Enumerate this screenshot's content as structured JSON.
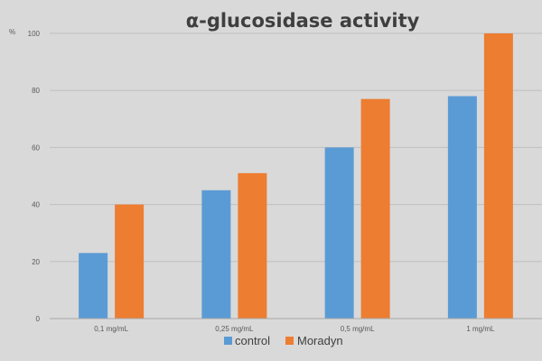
{
  "chart_data": {
    "type": "bar",
    "title": "α-glucosidase activity",
    "ylabel": "%",
    "xlabel": "",
    "categories": [
      "0,1 mg/mL",
      "0,25 mg/mL",
      "0,5 mg/mL",
      "1 mg/mL"
    ],
    "series": [
      {
        "name": "control",
        "values": [
          23,
          45,
          60,
          78
        ]
      },
      {
        "name": "Moradyn",
        "values": [
          40,
          51,
          77,
          100
        ]
      }
    ],
    "ylim": [
      0,
      100
    ],
    "yticks": [
      0,
      20,
      40,
      60,
      80,
      100
    ],
    "grid": true,
    "legend": "bottom"
  },
  "colors": {
    "control": "#5b9bd5",
    "Moradyn": "#ed7d31",
    "background": "#d9d9d9"
  }
}
